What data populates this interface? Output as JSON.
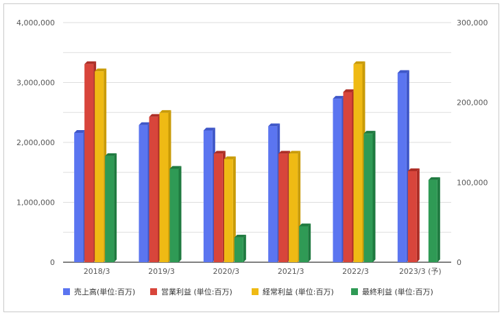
{
  "chart_data": {
    "type": "bar",
    "categories": [
      "2018/3",
      "2019/3",
      "2020/3",
      "2021/3",
      "2022/3",
      "2023/3 (予)"
    ],
    "y_left": {
      "ticks": [
        "0",
        "1,000,000",
        "2,000,000",
        "3,000,000",
        "4,000,000"
      ],
      "range": [
        0,
        4000000
      ]
    },
    "y_right": {
      "ticks": [
        "0",
        "100,000",
        "200,000",
        "300,000"
      ],
      "range": [
        0,
        300000
      ]
    },
    "series": [
      {
        "name": "売上高(単位:百万)",
        "axis": "left",
        "color": "#5b75f0",
        "side": "#3f57c8",
        "values": [
          2160000,
          2290000,
          2200000,
          2270000,
          2730000,
          3160000
        ]
      },
      {
        "name": "営業利益 (単位:百万)",
        "axis": "right",
        "color": "#d8453b",
        "side": "#ad2e26",
        "values": [
          248000,
          182000,
          136000,
          136000,
          213000,
          114000
        ]
      },
      {
        "name": "経常利益 (単位:百万)",
        "axis": "right",
        "color": "#efba14",
        "side": "#c99b08",
        "values": [
          239000,
          187000,
          129000,
          136000,
          248000,
          null
        ]
      },
      {
        "name": "最終利益 (単位:百万)",
        "axis": "right",
        "color": "#2f9a55",
        "side": "#1f7a40",
        "values": [
          133000,
          117000,
          31000,
          45000,
          161000,
          103000
        ]
      }
    ],
    "grid": true,
    "legend_position": "bottom"
  }
}
